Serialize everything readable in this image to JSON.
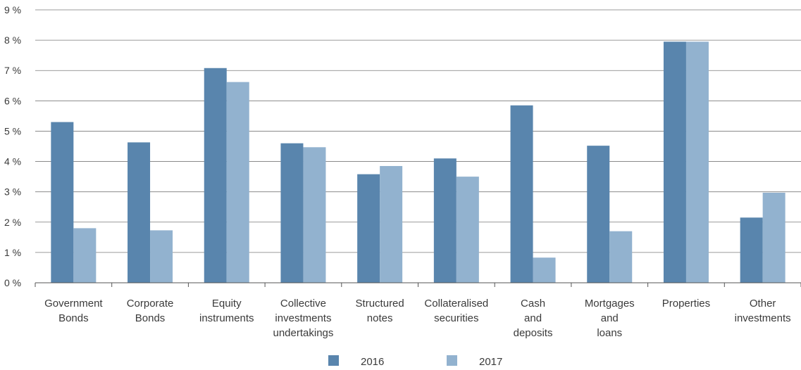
{
  "chart_data": {
    "type": "bar",
    "categories": [
      [
        "Government",
        "Bonds"
      ],
      [
        "Corporate",
        "Bonds"
      ],
      [
        "Equity",
        "instruments"
      ],
      [
        "Collective",
        "investments",
        "undertakings"
      ],
      [
        "Structured",
        "notes"
      ],
      [
        "Collateralised",
        "securities"
      ],
      [
        "Cash",
        "and",
        "deposits"
      ],
      [
        "Mortgages",
        "and",
        "loans"
      ],
      [
        "Properties"
      ],
      [
        "Other",
        "investments"
      ]
    ],
    "series": [
      {
        "name": "2016",
        "color": "#5985ad",
        "values": [
          5.3,
          4.63,
          7.08,
          4.6,
          3.58,
          4.1,
          5.85,
          4.52,
          7.95,
          2.15
        ]
      },
      {
        "name": "2017",
        "color": "#92b2cf",
        "values": [
          1.8,
          1.73,
          6.62,
          4.47,
          3.85,
          3.5,
          0.83,
          1.7,
          7.95,
          2.97
        ]
      }
    ],
    "ylim": [
      0,
      9
    ],
    "yticks": [
      "0 %",
      "1 %",
      "2 %",
      "3 %",
      "4 %",
      "5 %",
      "6 %",
      "7 %",
      "8 %",
      "9 %"
    ],
    "grid": true,
    "legend_position": "bottom-center"
  }
}
